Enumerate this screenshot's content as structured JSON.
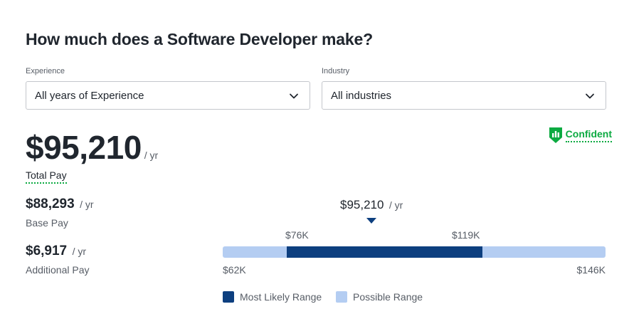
{
  "title": "How much does a Software Developer make?",
  "filters": {
    "experience": {
      "label": "Experience",
      "value": "All years of Experience"
    },
    "industry": {
      "label": "Industry",
      "value": "All industries"
    }
  },
  "confidence": {
    "label": "Confident",
    "icon": "bar-chart-shield-icon",
    "color": "#0caa41"
  },
  "total_pay": {
    "amount": "$95,210",
    "per": "/ yr",
    "label": "Total Pay"
  },
  "base_pay": {
    "amount": "$88,293",
    "per": "/ yr",
    "label": "Base Pay"
  },
  "additional_pay": {
    "amount": "$6,917",
    "per": "/ yr",
    "label": "Additional Pay"
  },
  "range": {
    "marker": {
      "amount": "$95,210",
      "per": "/ yr",
      "value": 95210
    },
    "min": {
      "label": "$62K",
      "value": 62000
    },
    "max": {
      "label": "$146K",
      "value": 146000
    },
    "likely_low": {
      "label": "$76K",
      "value": 76000
    },
    "likely_high": {
      "label": "$119K",
      "value": 119000
    },
    "colors": {
      "likely": "#0d3f7f",
      "possible": "#b4cdf2"
    }
  },
  "legend": {
    "likely": "Most Likely Range",
    "possible": "Possible Range"
  }
}
